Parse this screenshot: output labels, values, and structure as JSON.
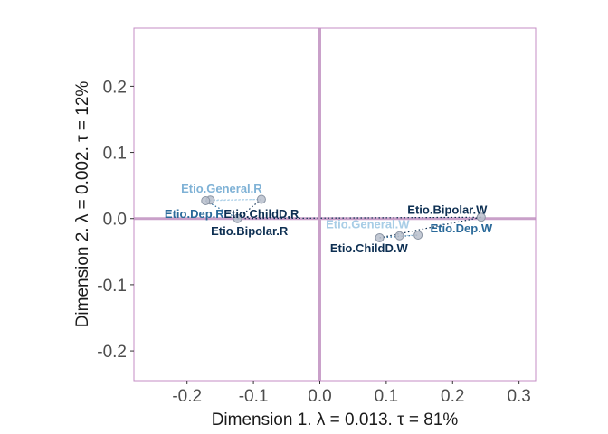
{
  "chart_data": {
    "type": "scatter",
    "xlabel": "Dimension 1.   λ = 0.013.  τ = 81%",
    "ylabel": "Dimension 2.   λ = 0.002.  τ = 12%",
    "xlim": [
      -0.28,
      0.325
    ],
    "ylim": [
      -0.245,
      0.288
    ],
    "x_ticks": [
      {
        "value": -0.2,
        "label": "-0.2"
      },
      {
        "value": -0.1,
        "label": "-0.1"
      },
      {
        "value": 0.0,
        "label": "0.0"
      },
      {
        "value": 0.1,
        "label": "0.1"
      },
      {
        "value": 0.2,
        "label": "0.2"
      },
      {
        "value": 0.3,
        "label": "0.3"
      }
    ],
    "y_ticks": [
      {
        "value": -0.2,
        "label": "-0.2"
      },
      {
        "value": -0.1,
        "label": "-0.1"
      },
      {
        "value": 0.0,
        "label": "0.0"
      },
      {
        "value": 0.1,
        "label": "0.1"
      },
      {
        "value": 0.2,
        "label": "0.2"
      }
    ],
    "grid": false,
    "legend": "none",
    "colors": {
      "frame": "#c48ec4",
      "origin_lines": "#c9a0c9",
      "point_fill": "#b8c0cc",
      "point_stroke": "#8a94a3"
    },
    "points": [
      {
        "label": "Etio.General.R",
        "x": -0.165,
        "y": 0.028,
        "color": "#7fb2d6",
        "lx": 0.0,
        "ly": 0.046,
        "anchor": "middle"
      },
      {
        "label": "Etio.Dep.R",
        "x": -0.172,
        "y": 0.027,
        "color": "#2a6a9a",
        "lx": -0.189,
        "ly": 0.008,
        "anchor": "middle"
      },
      {
        "label": "Etio.ChildD.R",
        "x": -0.088,
        "y": 0.029,
        "color": "#0d2f52",
        "lx": -0.088,
        "ly": 0.008,
        "anchor": "middle"
      },
      {
        "label": "Etio.Bipolar.R",
        "x": -0.124,
        "y": 0.0,
        "color": "#0d2f52",
        "lx": -0.106,
        "ly": -0.018,
        "anchor": "middle"
      },
      {
        "label": "Etio.Bipolar.W",
        "x": 0.243,
        "y": 0.002,
        "color": "#0d2f52",
        "lx": 0.252,
        "ly": 0.014,
        "anchor": "end"
      },
      {
        "label": "Etio.General.W",
        "x": 0.12,
        "y": -0.026,
        "color": "#a8cde6",
        "lx": 0.072,
        "ly": -0.008,
        "anchor": "middle"
      },
      {
        "label": "Etio.Dep.W",
        "x": 0.148,
        "y": -0.025,
        "color": "#2a6a9a",
        "lx": 0.213,
        "ly": -0.014,
        "anchor": "middle"
      },
      {
        "label": "Etio.ChildD.W",
        "x": 0.09,
        "y": -0.029,
        "color": "#0d2f52",
        "lx": 0.074,
        "ly": -0.044,
        "anchor": "middle"
      }
    ],
    "connections": [
      {
        "from": 0,
        "to": 2,
        "color": "#a8cde6"
      },
      {
        "from": 1,
        "to": 2,
        "color": "#a8cde6"
      },
      {
        "from": 1,
        "to": 3,
        "color": "#2a6a9a"
      },
      {
        "from": 2,
        "to": 3,
        "color": "#0d2f52"
      },
      {
        "from": 3,
        "to": 4,
        "color": "#0d2f52"
      },
      {
        "from": 7,
        "to": 5,
        "color": "#a8cde6"
      },
      {
        "from": 7,
        "to": 6,
        "color": "#2a6a9a"
      },
      {
        "from": 5,
        "to": 6,
        "color": "#a8cde6"
      },
      {
        "from": 7,
        "to": 4,
        "color": "#0d2f52"
      }
    ]
  }
}
